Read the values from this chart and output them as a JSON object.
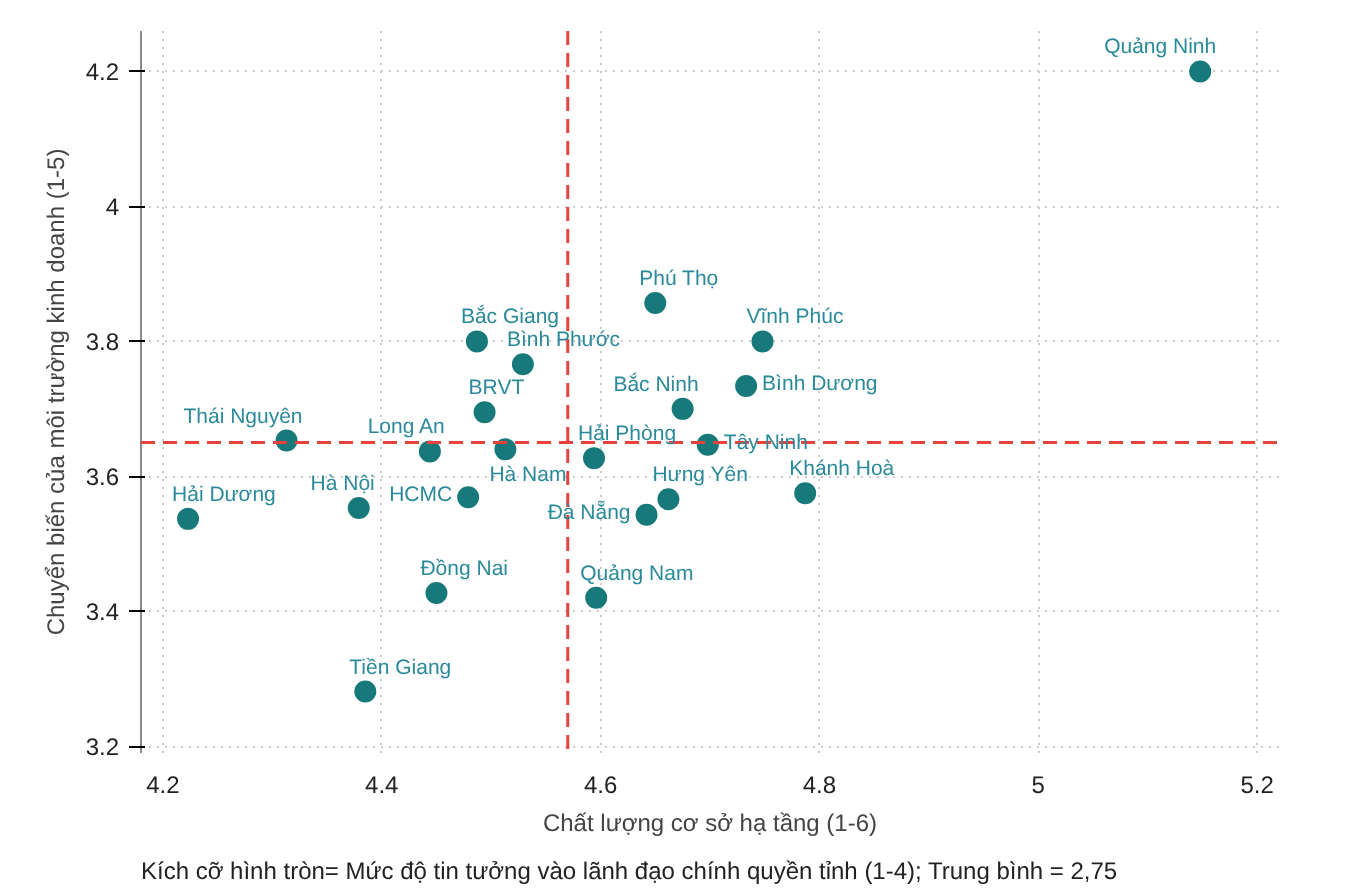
{
  "chart_data": {
    "type": "scatter",
    "xlabel": "Chất lượng cơ sở hạ tầng (1-6)",
    "ylabel": "Chuyển biến của môi trường kinh doanh (1-5)",
    "x": [
      5.148,
      4.65,
      4.748,
      4.733,
      4.675,
      4.698,
      4.594,
      4.662,
      4.642,
      4.787,
      4.596,
      4.487,
      4.529,
      4.494,
      4.444,
      4.513,
      4.479,
      4.313,
      4.379,
      4.223,
      4.45,
      4.385
    ],
    "series": [
      {
        "color": "#17797a",
        "values": [
          4.2,
          3.857,
          3.8,
          3.734,
          3.7,
          3.647,
          3.627,
          3.566,
          3.543,
          3.575,
          3.42,
          3.8,
          3.766,
          3.695,
          3.637,
          3.64,
          3.569,
          3.653,
          3.553,
          3.537,
          3.427,
          3.281
        ]
      }
    ],
    "xlim": [
      4.18,
      5.22
    ],
    "ylim": [
      3.19,
      4.26
    ],
    "xticks": [
      4.2,
      4.4,
      4.6,
      4.8,
      5,
      5.2
    ],
    "yticks": [
      3.2,
      3.4,
      3.6,
      3.8,
      4,
      4.2
    ],
    "grid": true,
    "marker": "circle",
    "ref_lines": [
      {
        "axis": "x",
        "value": 4.57,
        "color": "#e8423f",
        "line_style": "dashed"
      },
      {
        "axis": "y",
        "value": 3.65,
        "color": "#e8423f",
        "line_style": "dashed"
      }
    ],
    "annotations": [
      {
        "text": "Quảng Ninh",
        "x": 5.148,
        "y": 4.2
      },
      {
        "text": "Phú Thọ",
        "x": 4.65,
        "y": 3.857
      },
      {
        "text": "Vĩnh Phúc",
        "x": 4.748,
        "y": 3.8
      },
      {
        "text": "Bình Dương",
        "x": 4.733,
        "y": 3.734
      },
      {
        "text": "Bắc Ninh",
        "x": 4.675,
        "y": 3.7
      },
      {
        "text": "Tây Ninh",
        "x": 4.698,
        "y": 3.647
      },
      {
        "text": "Hải Phòng",
        "x": 4.594,
        "y": 3.627
      },
      {
        "text": "Hưng Yên",
        "x": 4.662,
        "y": 3.566
      },
      {
        "text": "Đà Nẵng",
        "x": 4.642,
        "y": 3.543
      },
      {
        "text": "Khánh Hoà",
        "x": 4.787,
        "y": 3.575
      },
      {
        "text": "Quảng Nam",
        "x": 4.596,
        "y": 3.42
      },
      {
        "text": "Bắc Giang",
        "x": 4.487,
        "y": 3.8
      },
      {
        "text": "Bình Phước",
        "x": 4.529,
        "y": 3.766
      },
      {
        "text": "BRVT",
        "x": 4.494,
        "y": 3.695
      },
      {
        "text": "Long An",
        "x": 4.444,
        "y": 3.637
      },
      {
        "text": "Hà Nam",
        "x": 4.513,
        "y": 3.64
      },
      {
        "text": "HCMC",
        "x": 4.479,
        "y": 3.569
      },
      {
        "text": "Thái Nguyên",
        "x": 4.313,
        "y": 3.653
      },
      {
        "text": "Hà Nội",
        "x": 4.379,
        "y": 3.553
      },
      {
        "text": "Hải Dương",
        "x": 4.223,
        "y": 3.537
      },
      {
        "text": "Đồng Nai",
        "x": 4.45,
        "y": 3.427
      },
      {
        "text": "Tiền Giang",
        "x": 4.385,
        "y": 3.281
      },
      "Kích cỡ hình tròn= Mức độ tin tưởng vào lãnh đạo chính quyền tỉnh (1-4); Trung bình = 2,75"
    ]
  }
}
